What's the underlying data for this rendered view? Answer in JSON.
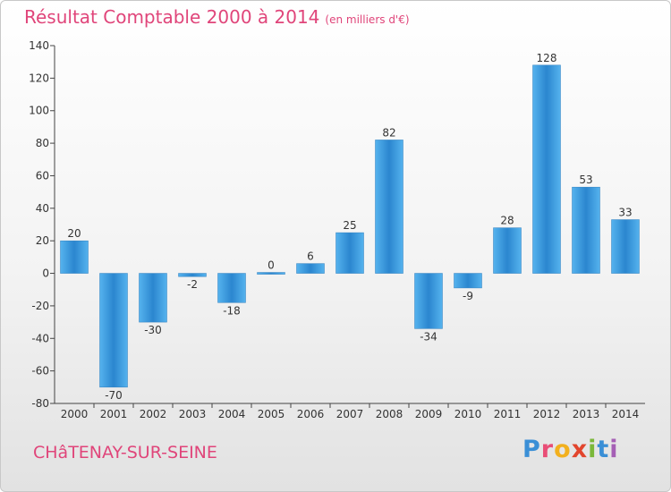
{
  "title": "Résultat Comptable 2000 à 2014",
  "subtitle": "(en milliers d'€)",
  "town": "CHâTENAY-SUR-SEINE",
  "brand": {
    "letters": [
      "P",
      "r",
      "o",
      "x",
      "i",
      "t",
      "i"
    ],
    "colors": [
      "#3a8fd6",
      "#e94e77",
      "#f2b01e",
      "#e2452d",
      "#7bb83a",
      "#3a8fd6",
      "#a55fb5"
    ]
  },
  "colors": {
    "bar": "#3d9ce0",
    "title": "#e0457a"
  },
  "chart_data": {
    "type": "bar",
    "categories": [
      "2000",
      "2001",
      "2002",
      "2003",
      "2004",
      "2005",
      "2006",
      "2007",
      "2008",
      "2009",
      "2010",
      "2011",
      "2012",
      "2013",
      "2014"
    ],
    "values": [
      20,
      -70,
      -30,
      -2,
      -18,
      0,
      6,
      25,
      82,
      -34,
      -9,
      28,
      128,
      53,
      33
    ],
    "ylim": [
      -80,
      140
    ],
    "yticks": [
      -80,
      -60,
      -40,
      -20,
      0,
      20,
      40,
      60,
      80,
      100,
      120,
      140
    ],
    "grid": false,
    "legend": "none"
  }
}
